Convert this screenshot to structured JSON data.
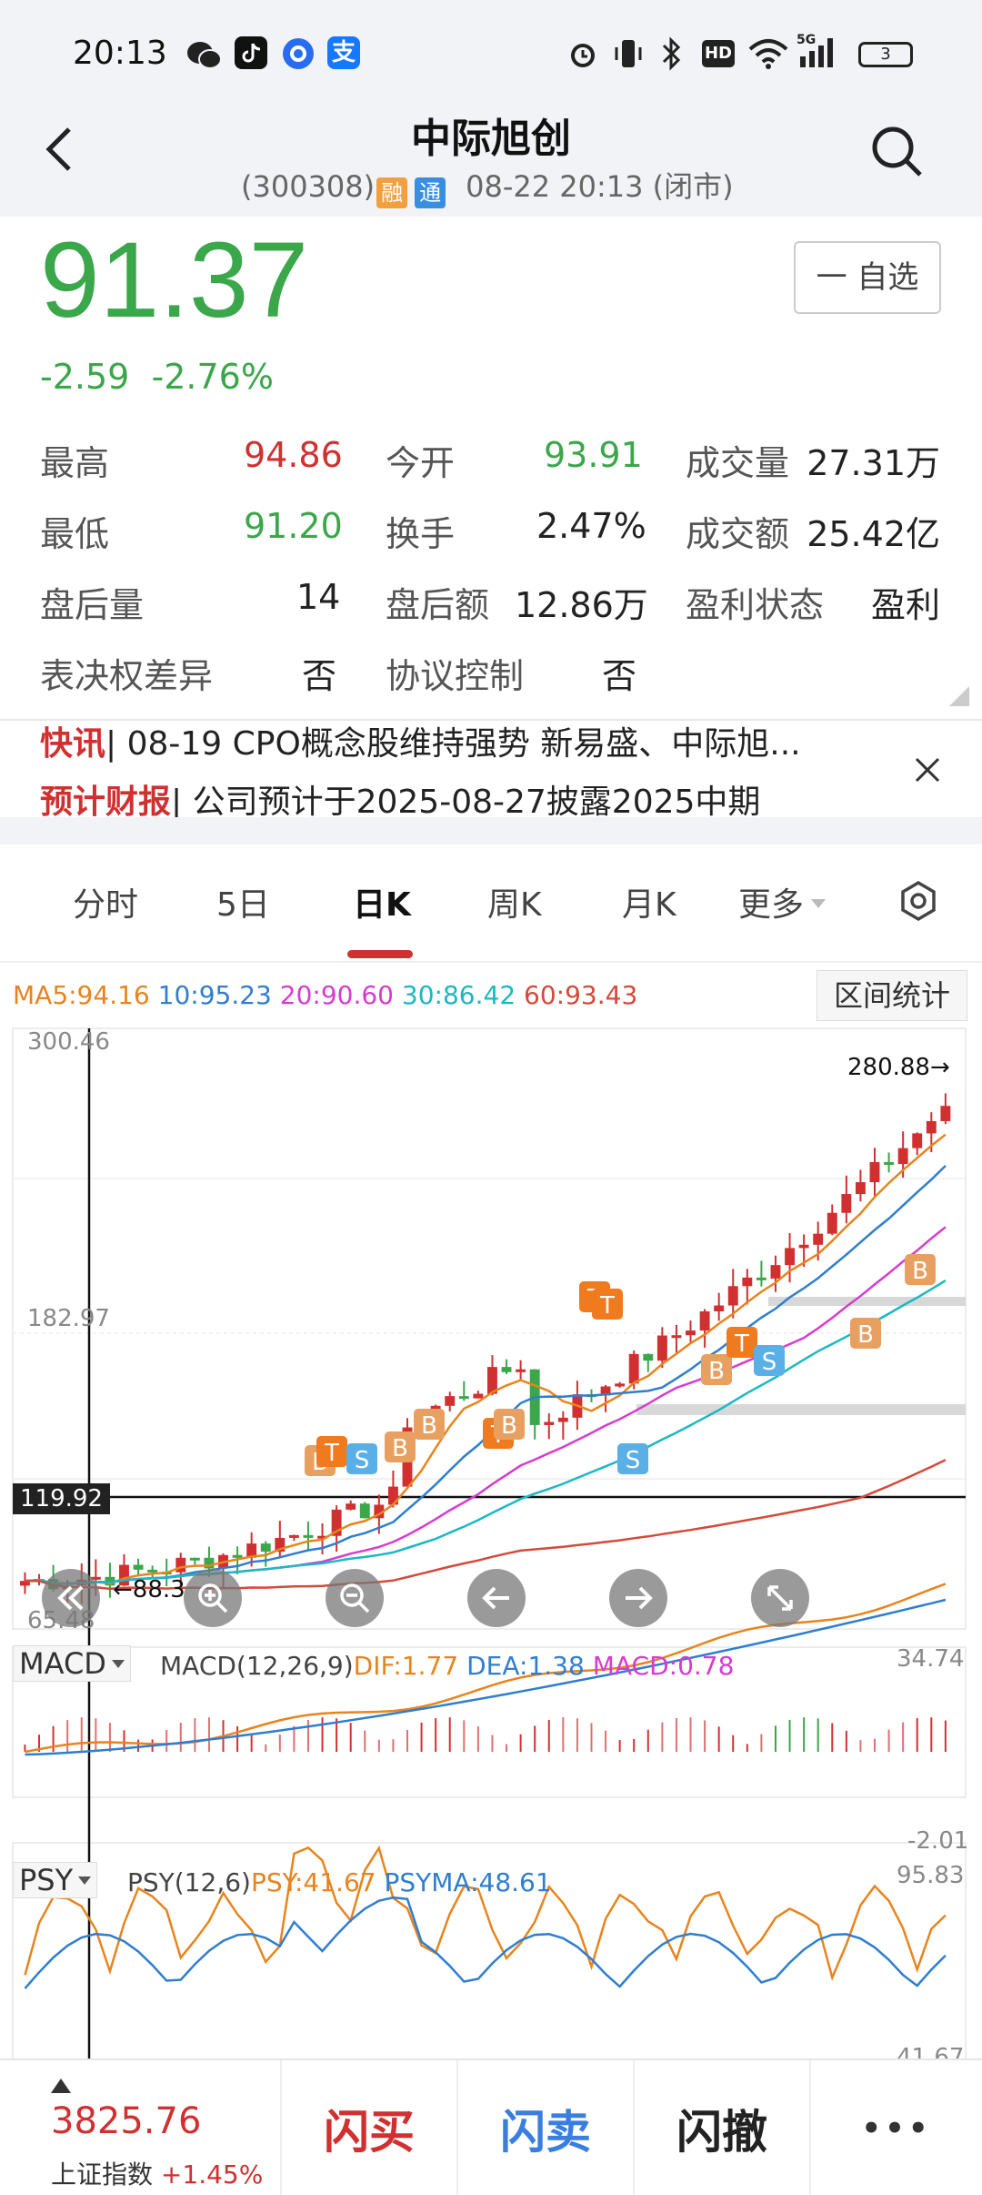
{
  "status_bar": {
    "time": "20:13",
    "battery": "3",
    "network": "5G",
    "hd": "HD"
  },
  "header": {
    "title": "中际旭创",
    "code": "(300308)",
    "badge_rong": "融",
    "badge_tong": "通",
    "datetime": "08-22 20:13 (闭市)"
  },
  "quote": {
    "price": "91.37",
    "change": "-2.59",
    "change_pct": "-2.76%",
    "watch_button": "一 自选",
    "fields": [
      {
        "label": "最高",
        "value": "94.86"
      },
      {
        "label": "今开",
        "value": "93.91"
      },
      {
        "label": "成交量",
        "value": "27.31万"
      },
      {
        "label": "最低",
        "value": "91.20"
      },
      {
        "label": "换手",
        "value": "2.47%"
      },
      {
        "label": "成交额",
        "value": "25.42亿"
      },
      {
        "label": "盘后量",
        "value": "14"
      },
      {
        "label": "盘后额",
        "value": "12.86万"
      },
      {
        "label": "盈利状态",
        "value": "盈利"
      },
      {
        "label": "表决权差异",
        "value": "否"
      },
      {
        "label": "协议控制",
        "value": "否"
      }
    ]
  },
  "news": {
    "line1_tag": "快讯",
    "line1_text": "| 08-19 CPO概念股维持强势 新易盛、中际旭...",
    "line2_tag": "预计财报",
    "line2_text": "| 公司预计于2025-08-27披露2025中期"
  },
  "chart_tabs": [
    "分时",
    "5日",
    "日K",
    "周K",
    "月K",
    "更多"
  ],
  "active_tab": "日K",
  "ma_legend": {
    "ma5": "MA5:94.16",
    "ma10": "10:95.23",
    "ma20": "20:90.60",
    "ma30": "30:86.42",
    "ma60": "60:93.43"
  },
  "range_stats_button": "区间统计",
  "kline_labels": {
    "top": "300.46",
    "mid": "182.97",
    "bottom": "65.48",
    "crosshair": "119.92",
    "high": "280.88",
    "low": "88.3"
  },
  "markers": {
    "b": "B",
    "t": "T",
    "s": "S"
  },
  "macd": {
    "selector": "MACD",
    "params": "MACD(12,26,9)",
    "dif": "DIF:1.77",
    "dea": "DEA:1.38",
    "macd": "MACD:0.78",
    "max": "34.74",
    "min": "-2.01"
  },
  "psy": {
    "selector": "PSY",
    "params": "PSY(12,6)",
    "psy": "PSY:41.67",
    "psyma": "PSYMA:48.61",
    "max": "95.83",
    "min": "41.67"
  },
  "index": {
    "value": "3825.76",
    "name": "上证指数",
    "change": "+1.45%"
  },
  "actions": {
    "buy": "闪买",
    "sell": "闪卖",
    "cancel": "闪撤",
    "more": "•••"
  },
  "colors": {
    "up": "#d03030",
    "down": "#3aa74a",
    "ma5": "#e8841e",
    "ma10": "#2f7ecf",
    "ma20": "#d63cd0",
    "ma30": "#1bb8c4",
    "ma60": "#d44a3a"
  }
}
